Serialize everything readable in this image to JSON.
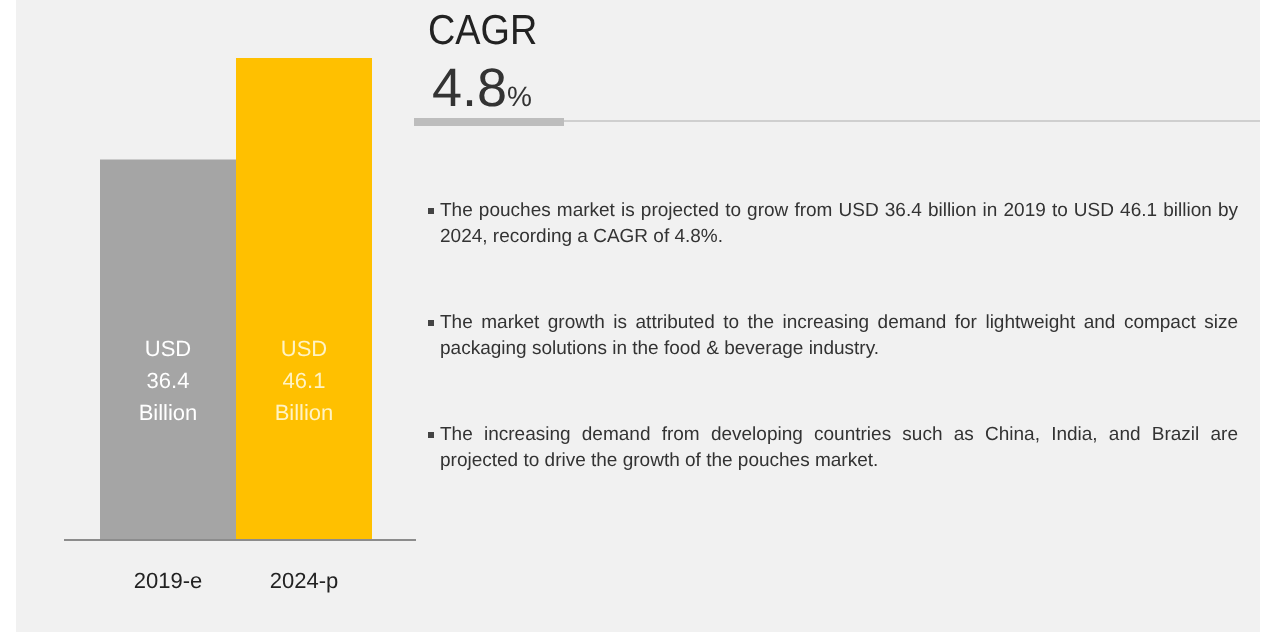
{
  "chart_data": {
    "type": "bar",
    "title": "CAGR",
    "subtitle": "4.8%",
    "categories": [
      "2019-e",
      "2024-p"
    ],
    "values": [
      36.4,
      46.1
    ],
    "colors": [
      "#a5a5a5",
      "#ffc000"
    ],
    "value_labels": [
      "USD 36.4 Billion",
      "USD 46.1 Billion"
    ],
    "annotations": [
      "The pouches market is projected to grow from USD 36.4 billion in 2019 to USD 46.1 billion by 2024, recording a CAGR of 4.8%.",
      "The market growth is attributed to the increasing demand for lightweight and compact size packaging solutions in the food & beverage industry.",
      "The increasing demand from developing countries such as China, India, and Brazil are projected to drive the growth of the pouches market."
    ]
  }
}
